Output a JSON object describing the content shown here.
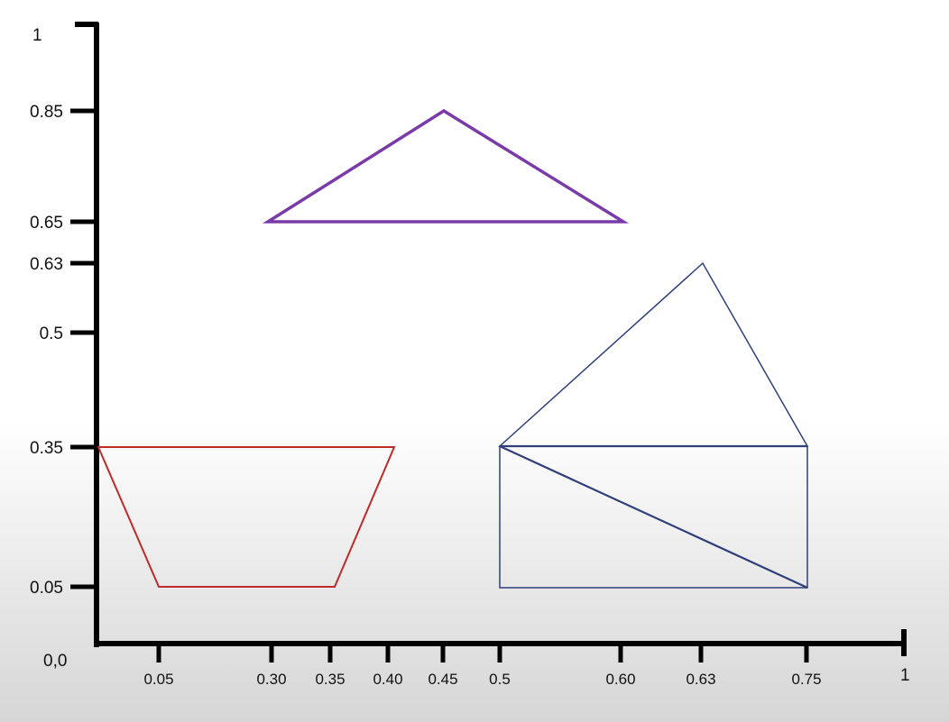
{
  "axes": {
    "origin_label": "0,0",
    "y_top_label": "1",
    "x_end_label": "1",
    "y_ticks": [
      {
        "value": 0.85,
        "label": "0.85"
      },
      {
        "value": 0.65,
        "label": "0.65"
      },
      {
        "value": 0.63,
        "label": "0.63"
      },
      {
        "value": 0.5,
        "label": "0.5"
      },
      {
        "value": 0.35,
        "label": "0.35"
      },
      {
        "value": 0.05,
        "label": "0.05"
      }
    ],
    "x_ticks": [
      {
        "value": 0.05,
        "label": "0.05"
      },
      {
        "value": 0.3,
        "label": "0.30"
      },
      {
        "value": 0.35,
        "label": "0.35"
      },
      {
        "value": 0.4,
        "label": "0.40"
      },
      {
        "value": 0.45,
        "label": "0.45"
      },
      {
        "value": 0.5,
        "label": "0.5"
      },
      {
        "value": 0.6,
        "label": "0.60"
      },
      {
        "value": 0.63,
        "label": "0.63"
      },
      {
        "value": 0.75,
        "label": "0.75"
      }
    ]
  },
  "colors": {
    "axis": "#000000",
    "purple_triangle": "#7a3aa8",
    "red_trapezoid": "#bf2a2a",
    "blue_shapes": "#2f3f7a"
  }
}
